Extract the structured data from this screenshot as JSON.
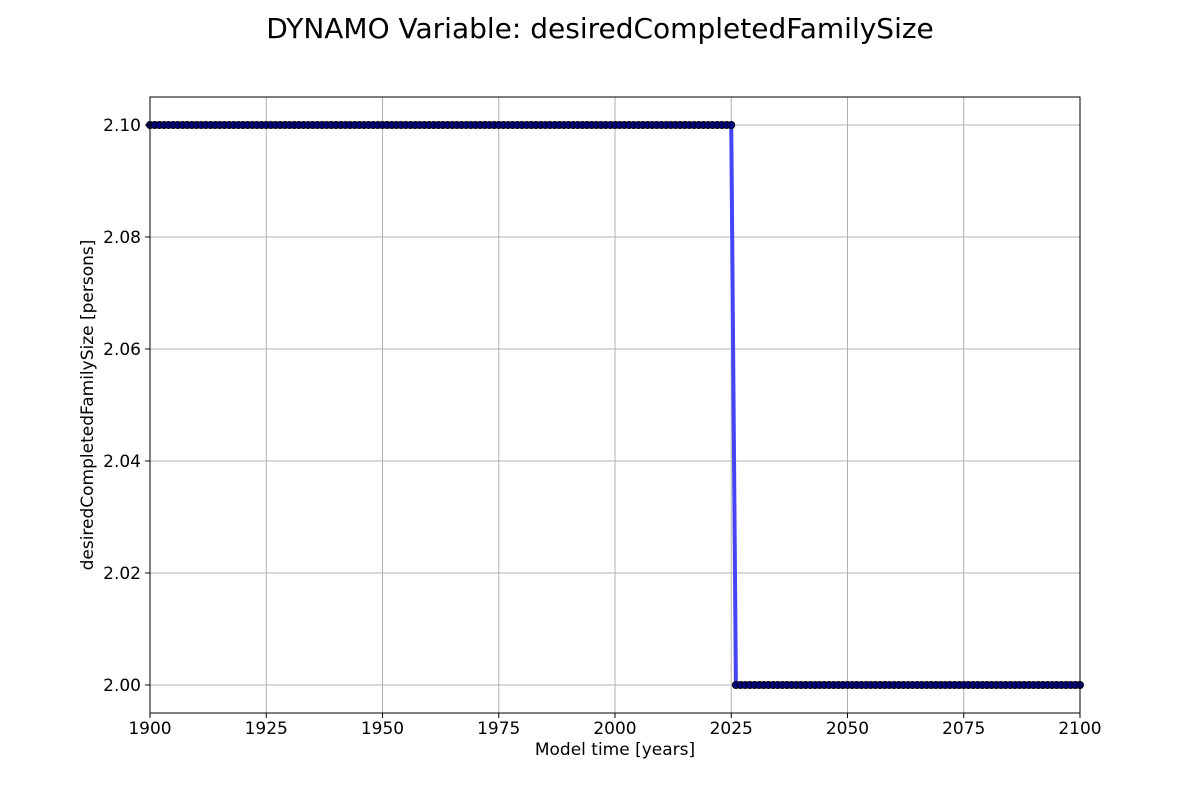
{
  "chart_data": {
    "type": "line",
    "title": "DYNAMO Variable: desiredCompletedFamilySize",
    "xlabel": "Model time [years]",
    "ylabel": "desiredCompletedFamilySize [persons]",
    "xlim": [
      1900,
      2100
    ],
    "ylim": [
      1.995,
      2.105
    ],
    "xticks": [
      1900,
      1925,
      1950,
      1975,
      2000,
      2025,
      2050,
      2075,
      2100
    ],
    "yticks": [
      2.0,
      2.02,
      2.04,
      2.06,
      2.08,
      2.1
    ],
    "xtick_labels": [
      "1900",
      "1925",
      "1950",
      "1975",
      "2000",
      "2025",
      "2050",
      "2075",
      "2100"
    ],
    "ytick_labels": [
      "2.00",
      "2.02",
      "2.04",
      "2.06",
      "2.08",
      "2.10"
    ],
    "grid": true,
    "series": [
      {
        "x_start": 1900,
        "x_end": 2100,
        "x_step": 1,
        "step_year": 2025,
        "value_before": 2.1,
        "value_after": 2.0,
        "line_color": "#4545f5",
        "marker_color": "#00007a"
      }
    ]
  }
}
